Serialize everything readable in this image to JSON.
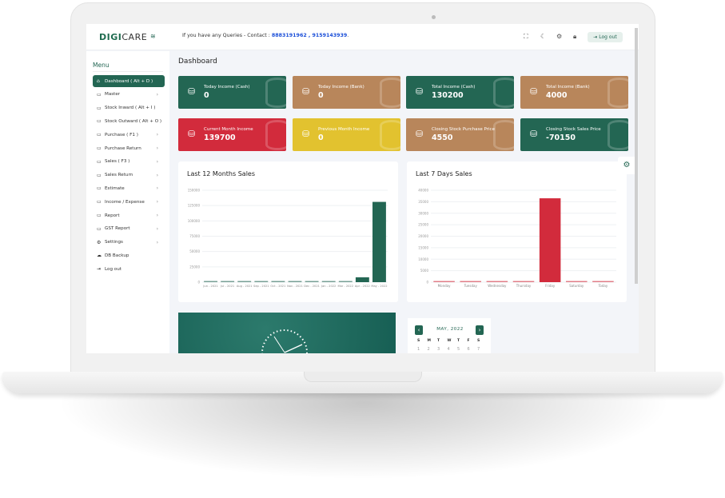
{
  "header": {
    "logo": "DIGI",
    "logo_suffix": "CARE",
    "query_text": "If you have any Queries - Contact : ",
    "phones": "8883191962 , 9159143939",
    "phones_end": ".",
    "logout_label": "Log out"
  },
  "sidebar": {
    "title": "Menu",
    "items": [
      {
        "label": "Dashboard ( Alt + D )",
        "icon": "home",
        "active": true,
        "chevron": false
      },
      {
        "label": "Master",
        "icon": "monitor",
        "chevron": true
      },
      {
        "label": "Stock Inward ( Alt + I )",
        "icon": "monitor",
        "chevron": false
      },
      {
        "label": "Stock Outward ( Alt + O )",
        "icon": "monitor",
        "chevron": false
      },
      {
        "label": "Purchase ( F1 )",
        "icon": "monitor",
        "chevron": true
      },
      {
        "label": "Purchase Return",
        "icon": "monitor",
        "chevron": true
      },
      {
        "label": "Sales ( F3 )",
        "icon": "monitor",
        "chevron": true
      },
      {
        "label": "Sales Return",
        "icon": "monitor",
        "chevron": true
      },
      {
        "label": "Estimate",
        "icon": "monitor",
        "chevron": true
      },
      {
        "label": "Income / Expense",
        "icon": "monitor",
        "chevron": true
      },
      {
        "label": "Report",
        "icon": "monitor",
        "chevron": true
      },
      {
        "label": "GST Report",
        "icon": "monitor",
        "chevron": true
      },
      {
        "label": "Settings",
        "icon": "gear",
        "chevron": true
      },
      {
        "label": "DB Backup",
        "icon": "cloud",
        "chevron": false
      },
      {
        "label": "Log out",
        "icon": "logout",
        "chevron": false
      }
    ]
  },
  "page_title": "Dashboard",
  "cards": [
    {
      "label": "Today Income (Cash)",
      "value": "0",
      "color": "#236653"
    },
    {
      "label": "Today Income (Bank)",
      "value": "0",
      "color": "#b8865b"
    },
    {
      "label": "Total Income (Cash)",
      "value": "130200",
      "color": "#236653"
    },
    {
      "label": "Total Income (Bank)",
      "value": "4000",
      "color": "#b8865b"
    },
    {
      "label": "Current Month Income",
      "value": "139700",
      "color": "#d22b3c"
    },
    {
      "label": "Previous Month Income",
      "value": "0",
      "color": "#e2c22f"
    },
    {
      "label": "Closing Stock Purchase Price",
      "value": "4550",
      "color": "#b8865b"
    },
    {
      "label": "Closing Stock Sales Price",
      "value": "-70150",
      "color": "#236653"
    }
  ],
  "chart_data": [
    {
      "type": "bar",
      "title": "Last 12 Months Sales",
      "categories": [
        "Jun - 2021",
        "Jul - 2021",
        "Aug - 2021",
        "Sep - 2021",
        "Oct - 2021",
        "Nov - 2021",
        "Dec - 2021",
        "Jan - 2022",
        "Mar - 2022",
        "Apr - 2022",
        "May - 2022"
      ],
      "values": [
        0,
        0,
        0,
        0,
        0,
        0,
        0,
        0,
        0,
        8000,
        131000
      ],
      "ylim": [
        0,
        150000
      ],
      "yticks": [
        "0",
        "25000",
        "50000",
        "75000",
        "100000",
        "125000",
        "150000"
      ],
      "color": "#236653",
      "grid": true
    },
    {
      "type": "bar",
      "title": "Last 7 Days Sales",
      "categories": [
        "Monday",
        "Tuesday",
        "Wednesday",
        "Thursday",
        "Friday",
        "Saturday",
        "Today"
      ],
      "values": [
        0,
        0,
        0,
        0,
        36500,
        0,
        0
      ],
      "ylim": [
        0,
        40000
      ],
      "yticks": [
        "0",
        "5000",
        "10000",
        "15000",
        "20000",
        "25000",
        "30000",
        "35000",
        "40000"
      ],
      "color": "#d22b3c",
      "grid": true
    }
  ],
  "calendar": {
    "month": "MAY, 2022",
    "prev": "‹",
    "next": "›",
    "weekdays": [
      "S",
      "M",
      "T",
      "W",
      "T",
      "F",
      "S"
    ],
    "days": [
      "1",
      "2",
      "3",
      "4",
      "5",
      "6",
      "7"
    ]
  }
}
